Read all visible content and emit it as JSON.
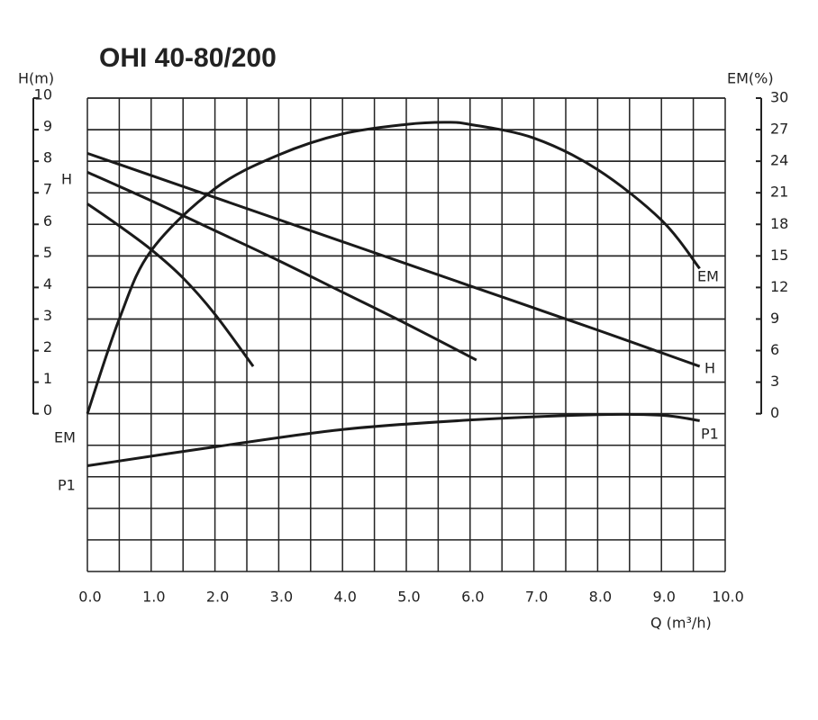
{
  "chart_data": {
    "type": "line",
    "title": "OHI 40-80/200",
    "xlabel": "Q (m³/h)",
    "ylabel": "H(m)",
    "y2label": "EM(%)",
    "xlim": [
      0,
      10
    ],
    "ylim": [
      -5,
      10
    ],
    "y2lim": [
      -15,
      30
    ],
    "xticks": [
      {
        "value": 0,
        "label": "0.0"
      },
      {
        "value": 1,
        "label": "1.0"
      },
      {
        "value": 2,
        "label": "2.0"
      },
      {
        "value": 3,
        "label": "3.0"
      },
      {
        "value": 4,
        "label": "4.0"
      },
      {
        "value": 5,
        "label": "5.0"
      },
      {
        "value": 6,
        "label": "6.0"
      },
      {
        "value": 7,
        "label": "7.0"
      },
      {
        "value": 8,
        "label": "8.0"
      },
      {
        "value": 9,
        "label": "9.0"
      },
      {
        "value": 10,
        "label": "10.0"
      }
    ],
    "yticks": [
      0,
      1,
      2,
      3,
      4,
      5,
      6,
      7,
      8,
      9,
      10
    ],
    "y2ticks": [
      0,
      3,
      6,
      9,
      12,
      15,
      18,
      21,
      24,
      27,
      30
    ],
    "grid": true,
    "series": [
      {
        "name": "H",
        "color": "#1a1a1a",
        "x": [
          0,
          2,
          4,
          6,
          8,
          9.6
        ],
        "values": [
          8.25,
          6.85,
          5.45,
          4.05,
          2.65,
          1.5
        ]
      },
      {
        "color": "#1a1a1a",
        "x": [
          0,
          1,
          2,
          3,
          4,
          5,
          6.1
        ],
        "values": [
          7.65,
          6.75,
          5.8,
          4.85,
          3.85,
          2.85,
          1.7
        ]
      },
      {
        "color": "#1a1a1a",
        "x": [
          0,
          0.5,
          1,
          1.5,
          2,
          2.6
        ],
        "values": [
          6.65,
          5.95,
          5.2,
          4.3,
          3.15,
          1.5
        ]
      },
      {
        "name": "EM",
        "color": "#1a1a1a",
        "axis": "y2",
        "x": [
          0,
          0.5,
          1,
          2,
          3,
          4,
          5,
          5.6,
          6,
          7,
          8,
          9,
          9.6
        ],
        "values": [
          0,
          9,
          15.5,
          21.4,
          24.6,
          26.6,
          27.5,
          27.7,
          27.5,
          26.2,
          23.2,
          18.4,
          13.8
        ]
      },
      {
        "name": "P1",
        "color": "#1a1a1a",
        "x": [
          0,
          2,
          4,
          6,
          8,
          9,
          9.6
        ],
        "values": [
          -1.65,
          -1.05,
          -0.5,
          -0.2,
          -0.03,
          -0.05,
          -0.22
        ]
      }
    ]
  }
}
